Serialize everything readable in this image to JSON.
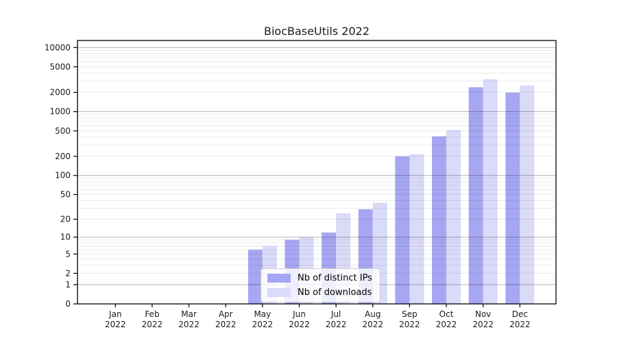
{
  "chart_data": {
    "type": "bar",
    "title": "BiocBaseUtils 2022",
    "categories": [
      "Jan 2022",
      "Feb 2022",
      "Mar 2022",
      "Apr 2022",
      "May 2022",
      "Jun 2022",
      "Jul 2022",
      "Aug 2022",
      "Sep 2022",
      "Oct 2022",
      "Nov 2022",
      "Dec 2022"
    ],
    "series": [
      {
        "name": "Nb of distinct IPs",
        "color": "#a6a6f2",
        "values": [
          0,
          0,
          0,
          0,
          6,
          9,
          12,
          29,
          200,
          410,
          2400,
          1980
        ]
      },
      {
        "name": "Nb of downloads",
        "color": "#dadaf9",
        "values": [
          0,
          0,
          0,
          0,
          7,
          10,
          25,
          37,
          216,
          515,
          3200,
          2570
        ]
      }
    ],
    "xlabel": "",
    "ylabel": "",
    "yscale": "log1p",
    "ylim": [
      0,
      12890
    ],
    "yticks": [
      10000,
      5000,
      2000,
      1000,
      500,
      200,
      100,
      50,
      20,
      10,
      5,
      2,
      1,
      0
    ],
    "grid": {
      "major_lines": [
        1,
        10,
        100,
        1000,
        10000
      ],
      "minor_lines": "2-9 per decade"
    },
    "legend_position": "inside lower-center"
  },
  "colors": {
    "axis": "#000000",
    "tick_text": "#1a1a1a",
    "grid_major": "rgba(0,0,0,0.30)",
    "grid_minor": "rgba(0,0,0,0.085)",
    "background": "#ffffff"
  }
}
